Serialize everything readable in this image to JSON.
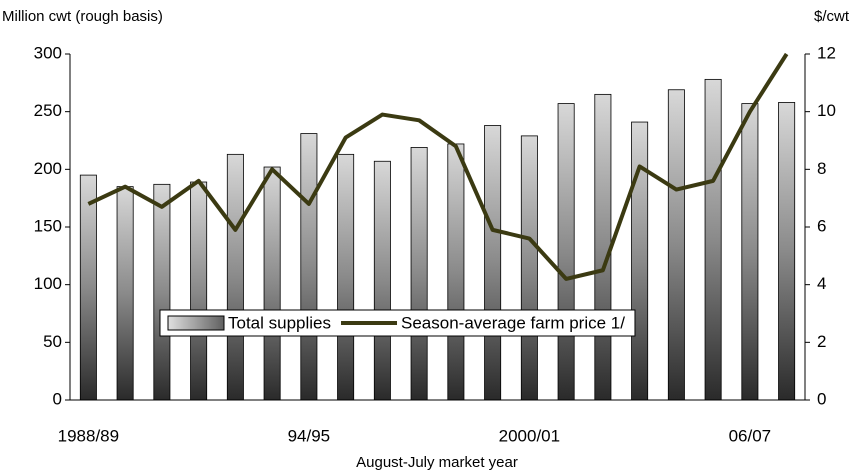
{
  "chart_data": {
    "type": "bar",
    "y_label": "Million cwt (rough basis)",
    "y2_label": "$/cwt",
    "x_label": "August-July market year",
    "categories": [
      "1988/89",
      null,
      null,
      null,
      null,
      null,
      "94/95",
      null,
      null,
      null,
      null,
      null,
      "2000/01",
      null,
      null,
      null,
      null,
      null,
      "06/07",
      null
    ],
    "series": [
      {
        "name": "Total supplies",
        "type": "bar",
        "color": "#9a9a9a",
        "values": [
          195,
          185,
          187,
          189,
          213,
          202,
          231,
          213,
          207,
          219,
          222,
          238,
          229,
          257,
          265,
          241,
          269,
          278,
          257,
          258
        ]
      },
      {
        "name": "Season-average farm price 1/",
        "type": "line",
        "axis": "y2",
        "color": "#3b3a12",
        "values": [
          6.8,
          7.4,
          6.7,
          7.6,
          5.9,
          8.0,
          6.8,
          9.1,
          9.9,
          9.7,
          8.8,
          5.9,
          5.6,
          4.2,
          4.5,
          8.1,
          7.3,
          7.6,
          10.0,
          12.0
        ]
      }
    ],
    "ylim": [
      0,
      300
    ],
    "yticks": [
      0,
      50,
      100,
      150,
      200,
      250,
      300
    ],
    "y2lim": [
      0,
      12
    ],
    "y2ticks": [
      0,
      2,
      4,
      6,
      8,
      10,
      12
    ],
    "legend": "bottom-center"
  }
}
